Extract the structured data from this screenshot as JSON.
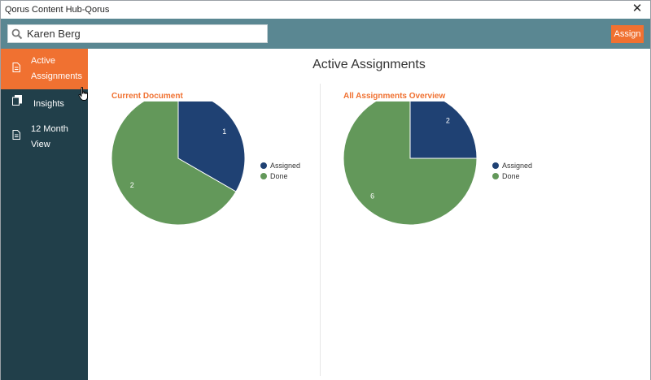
{
  "window": {
    "title": "Qorus Content Hub-Qorus"
  },
  "search": {
    "value": "Karen Berg",
    "placeholder": ""
  },
  "toolbar": {
    "assign_label": "Assign"
  },
  "sidebar": {
    "items": [
      {
        "label": "Active Assignments",
        "icon": "document-icon",
        "active": true
      },
      {
        "label": "Insights",
        "icon": "copy-pages-icon",
        "active": false
      },
      {
        "label": "12 Month View",
        "icon": "report-icon",
        "active": false
      }
    ]
  },
  "main": {
    "title": "Active Assignments"
  },
  "colors": {
    "accent": "#f07131",
    "topbar": "#5a8792",
    "sidebar": "#213f4a",
    "assigned": "#1f4173",
    "done": "#63985a"
  },
  "chart_data": [
    {
      "type": "pie",
      "title": "Current Document",
      "categories": [
        "Assigned",
        "Done"
      ],
      "values": [
        1,
        2
      ],
      "legend": "right"
    },
    {
      "type": "pie",
      "title": "All Assignments Overview",
      "categories": [
        "Assigned",
        "Done"
      ],
      "values": [
        2,
        6
      ],
      "legend": "right"
    }
  ]
}
